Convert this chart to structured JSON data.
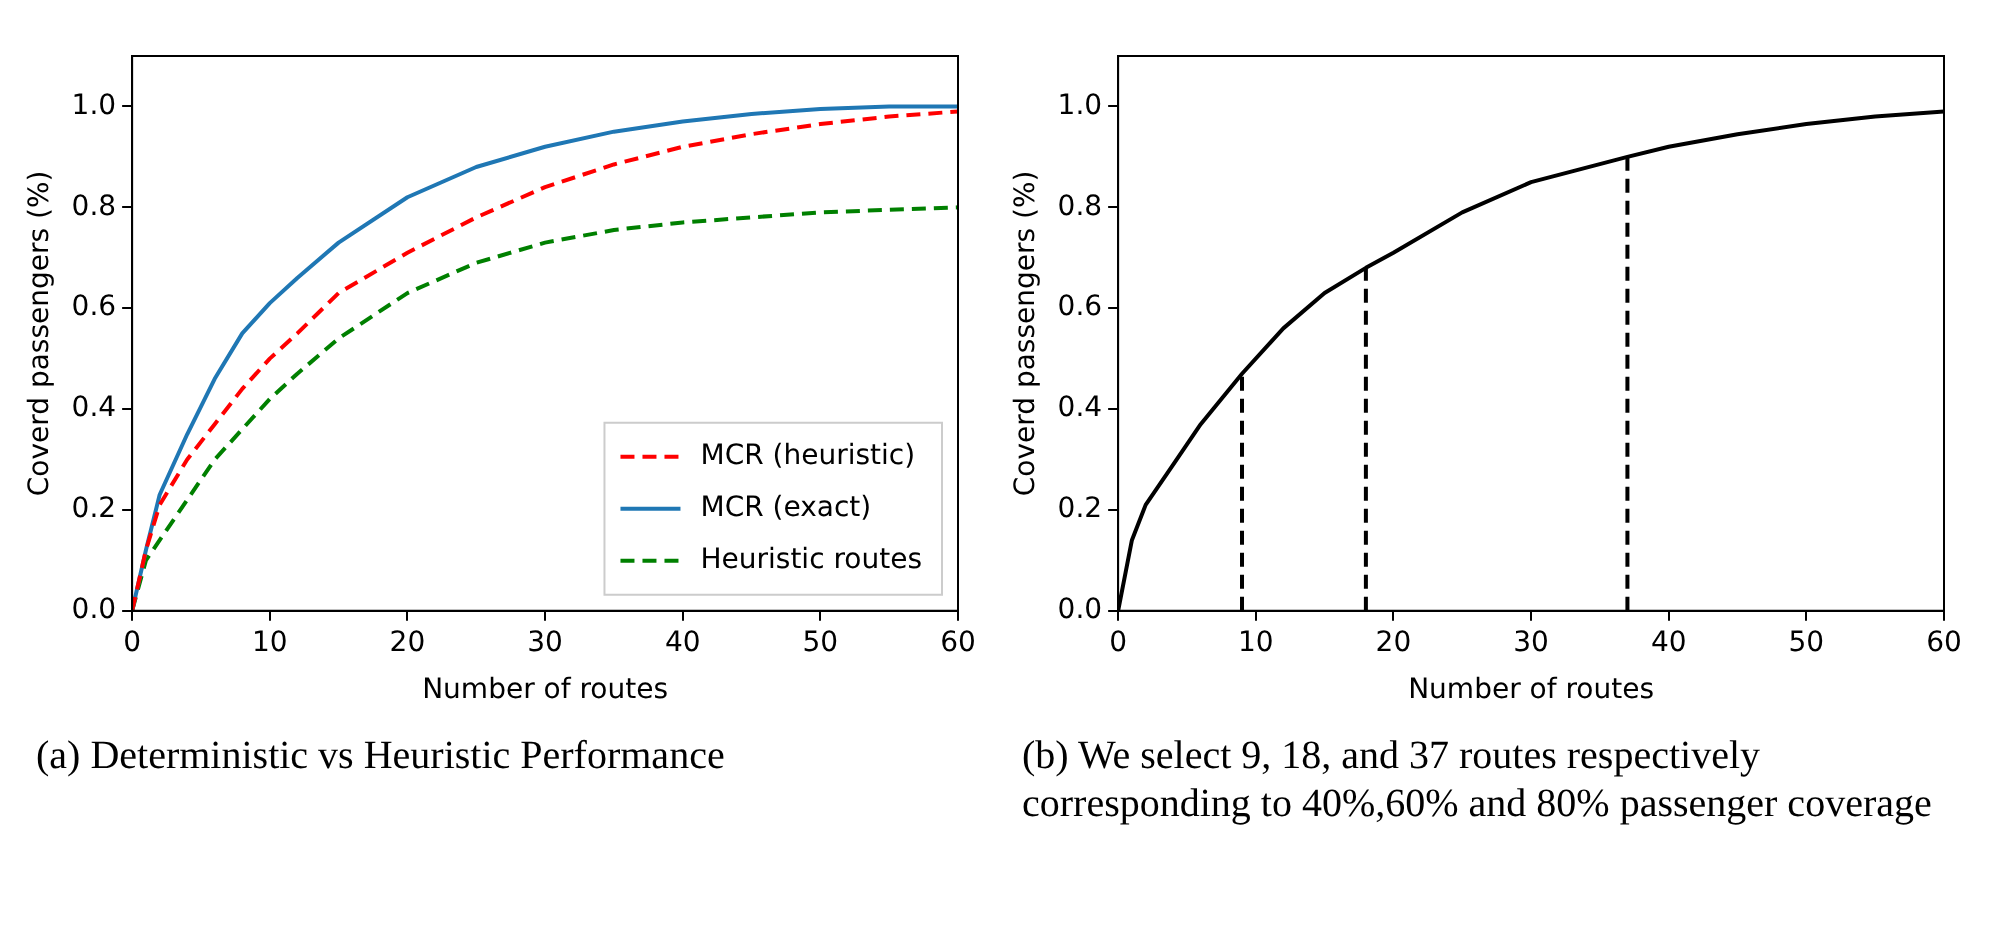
{
  "chart_data": [
    {
      "type": "line",
      "xlabel": "Number of routes",
      "ylabel": "Coverd passengers (%)",
      "xlim": [
        0,
        60
      ],
      "ylim": [
        0,
        1.1
      ],
      "xticks": [
        0,
        10,
        20,
        30,
        40,
        50,
        60
      ],
      "yticks": [
        {
          "value": 0,
          "label": "0.0"
        },
        {
          "value": 0.2,
          "label": "0.2"
        },
        {
          "value": 0.4,
          "label": "0.4"
        },
        {
          "value": 0.6,
          "label": "0.6"
        },
        {
          "value": 0.8,
          "label": "0.8"
        },
        {
          "value": 1,
          "label": "1.0"
        }
      ],
      "legend": "bottom right",
      "marker": "none",
      "x": [
        0,
        1,
        2,
        4,
        6,
        8,
        10,
        12,
        15,
        20,
        25,
        30,
        35,
        40,
        45,
        50,
        55,
        60
      ],
      "series": [
        {
          "name": "MCR (heuristic)",
          "color": "#ff0000",
          "line_style": "dashed",
          "values": [
            0,
            0.12,
            0.21,
            0.3,
            0.37,
            0.44,
            0.5,
            0.55,
            0.63,
            0.71,
            0.78,
            0.84,
            0.885,
            0.92,
            0.945,
            0.965,
            0.98,
            0.99
          ]
        },
        {
          "name": "MCR (exact)",
          "color": "#1f77b4",
          "line_style": "solid",
          "values": [
            0,
            0.12,
            0.23,
            0.35,
            0.46,
            0.55,
            0.61,
            0.66,
            0.73,
            0.82,
            0.88,
            0.92,
            0.95,
            0.97,
            0.985,
            0.995,
            1.0,
            1.0
          ]
        },
        {
          "name": "Heuristic routes",
          "color": "#008000",
          "line_style": "dashed",
          "values": [
            0,
            0.1,
            0.14,
            0.22,
            0.3,
            0.36,
            0.42,
            0.47,
            0.54,
            0.63,
            0.69,
            0.73,
            0.755,
            0.77,
            0.78,
            0.79,
            0.795,
            0.8
          ]
        }
      ],
      "annotations": [
        "(a) Deterministic vs Heuristic Performance"
      ]
    },
    {
      "type": "line",
      "xlabel": "Number of routes",
      "ylabel": "Coverd passengers (%)",
      "xlim": [
        0,
        60
      ],
      "ylim": [
        0,
        1.1
      ],
      "xticks": [
        0,
        10,
        20,
        30,
        40,
        50,
        60
      ],
      "yticks": [
        {
          "value": 0,
          "label": "0.0"
        },
        {
          "value": 0.2,
          "label": "0.2"
        },
        {
          "value": 0.4,
          "label": "0.4"
        },
        {
          "value": 0.6,
          "label": "0.6"
        },
        {
          "value": 0.8,
          "label": "0.8"
        },
        {
          "value": 1,
          "label": "1.0"
        }
      ],
      "legend": false,
      "marker": "none",
      "x": [
        0,
        1,
        2,
        4,
        6,
        9,
        12,
        15,
        18,
        20,
        25,
        30,
        37,
        40,
        45,
        50,
        55,
        60
      ],
      "series": [
        {
          "color": "#000000",
          "line_style": "solid",
          "values": [
            0,
            0.14,
            0.21,
            0.29,
            0.37,
            0.47,
            0.56,
            0.63,
            0.68,
            0.71,
            0.79,
            0.85,
            0.9,
            0.92,
            0.945,
            0.965,
            0.98,
            0.99
          ]
        }
      ],
      "ref_lines": [
        {
          "axis": "x",
          "value": 9,
          "color": "#000000",
          "line_style": "dashed"
        },
        {
          "axis": "x",
          "value": 18,
          "color": "#000000",
          "line_style": "dashed"
        },
        {
          "axis": "x",
          "value": 37,
          "color": "#000000",
          "line_style": "dashed"
        }
      ],
      "annotations": [
        "(b) We select 9, 18, and 37 routes respectively corresponding to 40%,60% and 80% passenger coverage"
      ]
    }
  ]
}
